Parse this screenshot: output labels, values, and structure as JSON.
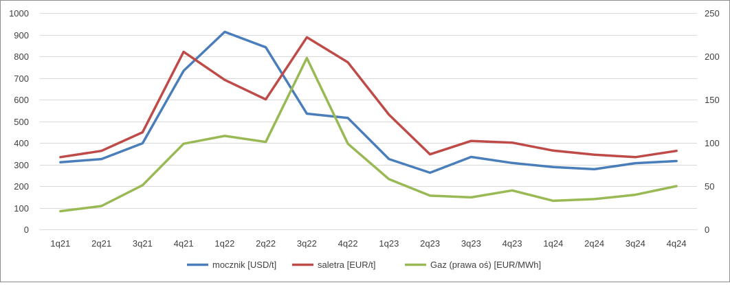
{
  "chart_data": {
    "type": "line",
    "categories": [
      "1q21",
      "2q21",
      "3q21",
      "4q21",
      "1q22",
      "2q22",
      "3q22",
      "4q22",
      "1q23",
      "2q23",
      "3q23",
      "4q23",
      "1q24",
      "2q24",
      "3q24",
      "4q24"
    ],
    "ylim": [
      0,
      1000
    ],
    "y_ticks": [
      "0",
      "100",
      "200",
      "300",
      "400",
      "500",
      "600",
      "700",
      "800",
      "900",
      "1000"
    ],
    "y2lim": [
      0,
      250
    ],
    "y2_ticks": [
      "0",
      "50",
      "100",
      "150",
      "200",
      "250"
    ],
    "grid": true,
    "legend_position": "bottom",
    "series": [
      {
        "name": "mocznik [USD/t]",
        "axis": "left",
        "color": "#4a7ebb",
        "values": [
          310,
          325,
          398,
          733,
          913,
          842,
          535,
          515,
          325,
          262,
          335,
          307,
          288,
          278,
          306,
          316
        ]
      },
      {
        "name": "saletra [EUR/t]",
        "axis": "left",
        "color": "#be4b48",
        "values": [
          334,
          363,
          449,
          821,
          691,
          601,
          888,
          772,
          530,
          347,
          409,
          401,
          364,
          345,
          334,
          363
        ]
      },
      {
        "name": "Gaz (prawa oś) [EUR/MWh]",
        "axis": "right",
        "color": "#98b954",
        "values": [
          21,
          27,
          51,
          99,
          108,
          101,
          198,
          99,
          58,
          39,
          37,
          45,
          33,
          35,
          40,
          50
        ]
      }
    ]
  }
}
